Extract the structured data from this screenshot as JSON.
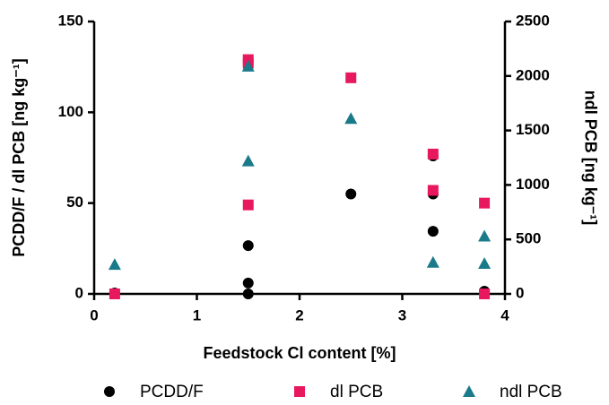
{
  "chart_data": {
    "type": "scatter",
    "x_label": "Feedstock Cl content [%]",
    "y_label": "PCDD/F / dl PCB [ng kg⁻¹]",
    "y2_label": "ndl PCB [ng kg⁻¹]",
    "xlim": [
      0,
      4
    ],
    "xticks": [
      0,
      1,
      2,
      3,
      4
    ],
    "ylim": [
      0,
      150
    ],
    "yticks": [
      0,
      50,
      100,
      150
    ],
    "y2lim": [
      0,
      2500
    ],
    "y2ticks": [
      0,
      500,
      1000,
      1500,
      2000,
      2500
    ],
    "series": [
      {
        "name": "PCDD/F",
        "color": "#000000",
        "marker": "circle",
        "x": [
          0.2,
          1.5,
          1.5,
          1.5,
          2.5,
          3.3,
          3.3,
          3.3,
          3.8
        ],
        "values": [
          0.5,
          26.6,
          6,
          0,
          55,
          76,
          55,
          34.5,
          1.5
        ]
      },
      {
        "name": "dl PCB",
        "color": "#e8185f",
        "marker": "square",
        "x": [
          0.2,
          1.5,
          1.5,
          1.5,
          2.5,
          3.3,
          3.3,
          3.8,
          3.8
        ],
        "values": [
          0,
          129,
          127,
          49,
          119,
          77,
          57,
          50,
          0
        ]
      },
      {
        "name": "ndl PCB",
        "color": "#1a7a8a",
        "marker": "triangle",
        "axis": "y2",
        "x": [
          0.2,
          1.5,
          1.5,
          2.5,
          3.3,
          3.8,
          3.8
        ],
        "values": [
          270,
          2090,
          1220,
          1610,
          290,
          530,
          280
        ]
      }
    ]
  }
}
